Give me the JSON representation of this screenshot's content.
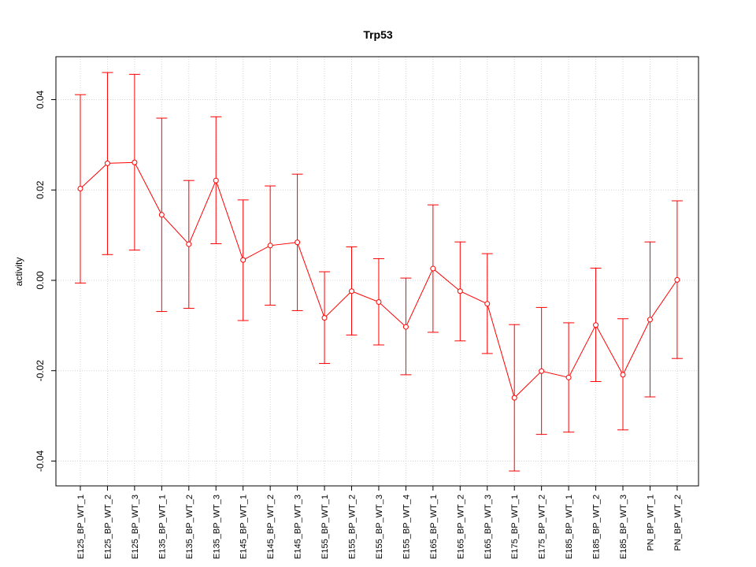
{
  "chart_data": {
    "type": "line",
    "title": "Trp53",
    "xlabel": "",
    "ylabel": "activity",
    "ylim": [
      -0.0455,
      0.0495
    ],
    "yticks": [
      -0.04,
      -0.02,
      0.0,
      0.02,
      0.04
    ],
    "ytick_labels": [
      "-0.04",
      "-0.02",
      "0.00",
      "0.02",
      "0.04"
    ],
    "grid": true,
    "categories": [
      "E125_BP_WT_1",
      "E125_BP_WT_2",
      "E125_BP_WT_3",
      "E135_BP_WT_1",
      "E135_BP_WT_2",
      "E135_BP_WT_3",
      "E145_BP_WT_1",
      "E145_BP_WT_2",
      "E145_BP_WT_3",
      "E155_BP_WT_1",
      "E155_BP_WT_2",
      "E155_BP_WT_3",
      "E155_BP_WT_4",
      "E165_BP_WT_1",
      "E165_BP_WT_2",
      "E165_BP_WT_3",
      "E175_BP_WT_1",
      "E175_BP_WT_2",
      "E185_BP_WT_1",
      "E185_BP_WT_2",
      "E185_BP_WT_3",
      "PN_BP_WT_1",
      "PN_BP_WT_2"
    ],
    "series": [
      {
        "color": "#ff0000",
        "values": [
          0.0203,
          0.0259,
          0.0261,
          0.0145,
          0.008,
          0.0221,
          0.0045,
          0.0077,
          0.0084,
          -0.0083,
          -0.0024,
          -0.0048,
          -0.0103,
          0.0026,
          -0.0024,
          -0.0052,
          -0.026,
          -0.0201,
          -0.0215,
          -0.0099,
          -0.0209,
          -0.0087,
          0.0001
        ],
        "upper": [
          0.0411,
          0.046,
          0.0456,
          0.0359,
          0.0221,
          0.0362,
          0.0178,
          0.0209,
          0.0235,
          0.0019,
          0.0074,
          0.0048,
          0.0005,
          0.0167,
          0.0085,
          0.0059,
          -0.0098,
          -0.006,
          -0.0094,
          0.0027,
          -0.0085,
          0.0085,
          0.0176
        ],
        "lower": [
          -0.0006,
          0.0057,
          0.0067,
          -0.0069,
          -0.0062,
          0.0081,
          -0.0089,
          -0.0055,
          -0.0067,
          -0.0184,
          -0.0121,
          -0.0143,
          -0.0209,
          -0.0115,
          -0.0134,
          -0.0162,
          -0.0422,
          -0.0341,
          -0.0336,
          -0.0224,
          -0.0331,
          -0.0258,
          -0.0173
        ]
      }
    ]
  }
}
